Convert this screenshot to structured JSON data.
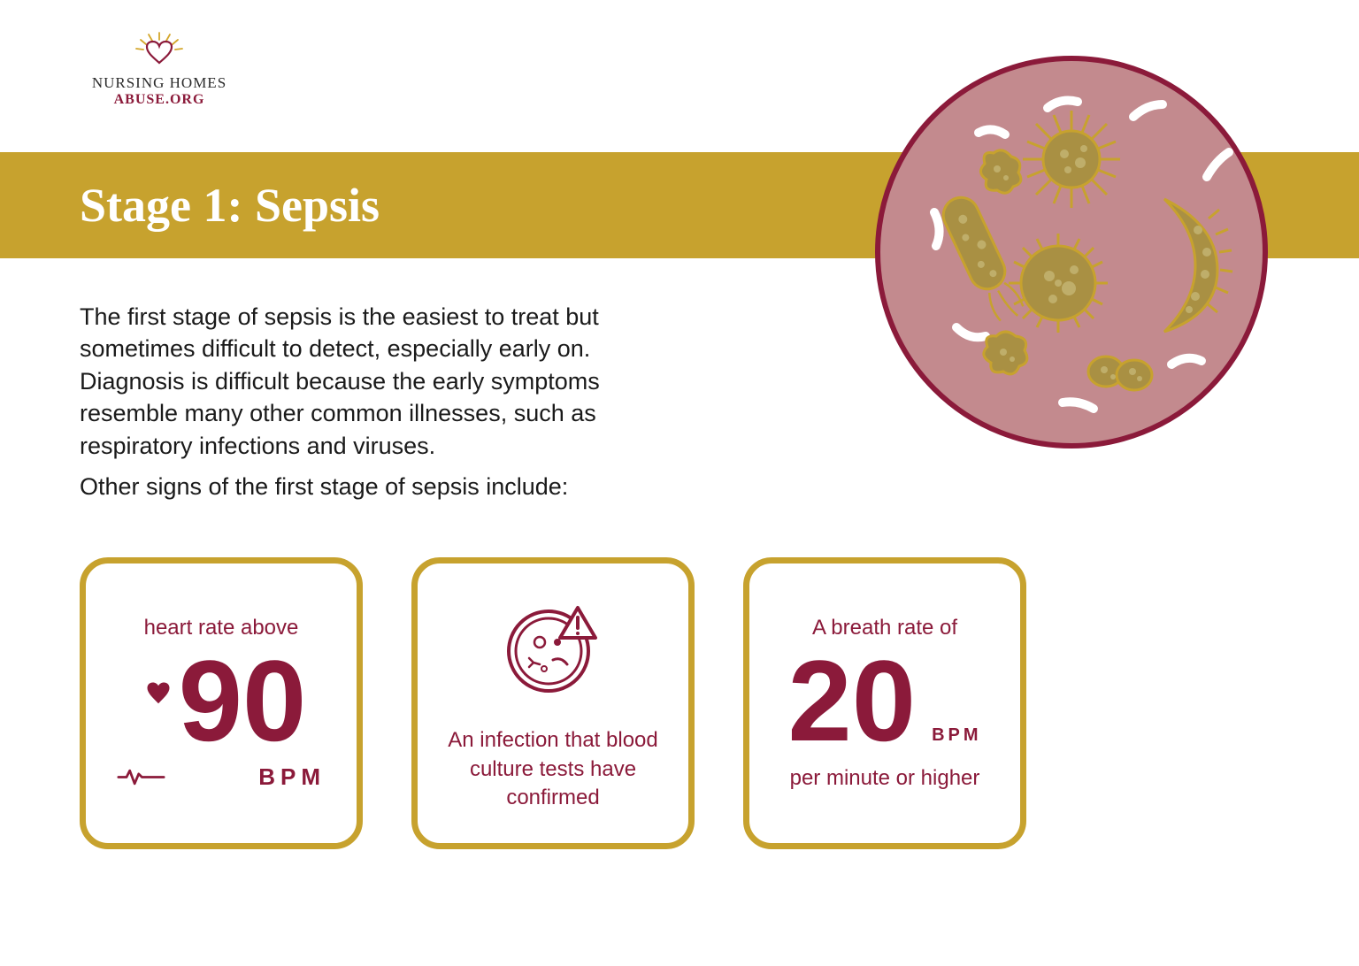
{
  "logo": {
    "line1": "NURSING HOMES",
    "line2": "ABUSE.ORG",
    "sun_color": "#d4a72c",
    "heart_color": "#8b1a3a"
  },
  "title_band": {
    "text": "Stage 1: Sepsis",
    "bg_color": "#c7a22e",
    "text_color": "#ffffff",
    "font_size": 54
  },
  "body": {
    "paragraph": "The first stage of sepsis is the easiest to treat but sometimes difficult to detect, especially early on. Diagnosis is difficult because the early symptoms resemble many other common illnesses, such as respiratory infections and viruses.",
    "font_size": 27
  },
  "subhead": {
    "text": "Other signs of the first stage of sepsis include:",
    "font_size": 27
  },
  "cards": {
    "border_color": "#c7a22e",
    "border_width": 7,
    "accent_color": "#8b1a3a",
    "items": [
      {
        "label": "heart rate above",
        "value": "90",
        "unit": "BPM",
        "label_font_size": 24,
        "value_font_size": 130,
        "unit_font_size": 26
      },
      {
        "text": "An infection that blood culture tests have confirmed",
        "text_font_size": 24
      },
      {
        "label": "A breath rate of",
        "value": "20",
        "unit": "BPM",
        "sub": "per minute or higher",
        "label_font_size": 24,
        "value_font_size": 130,
        "unit_font_size": 20,
        "sub_font_size": 24
      }
    ]
  },
  "dish": {
    "diameter": 450,
    "fill": "#c38a8e",
    "stroke": "#8b1a3a",
    "stroke_width": 6,
    "microbe_fill": "#a99043",
    "microbe_stroke": "#c7a22e",
    "rod_fill": "#ffffff"
  }
}
